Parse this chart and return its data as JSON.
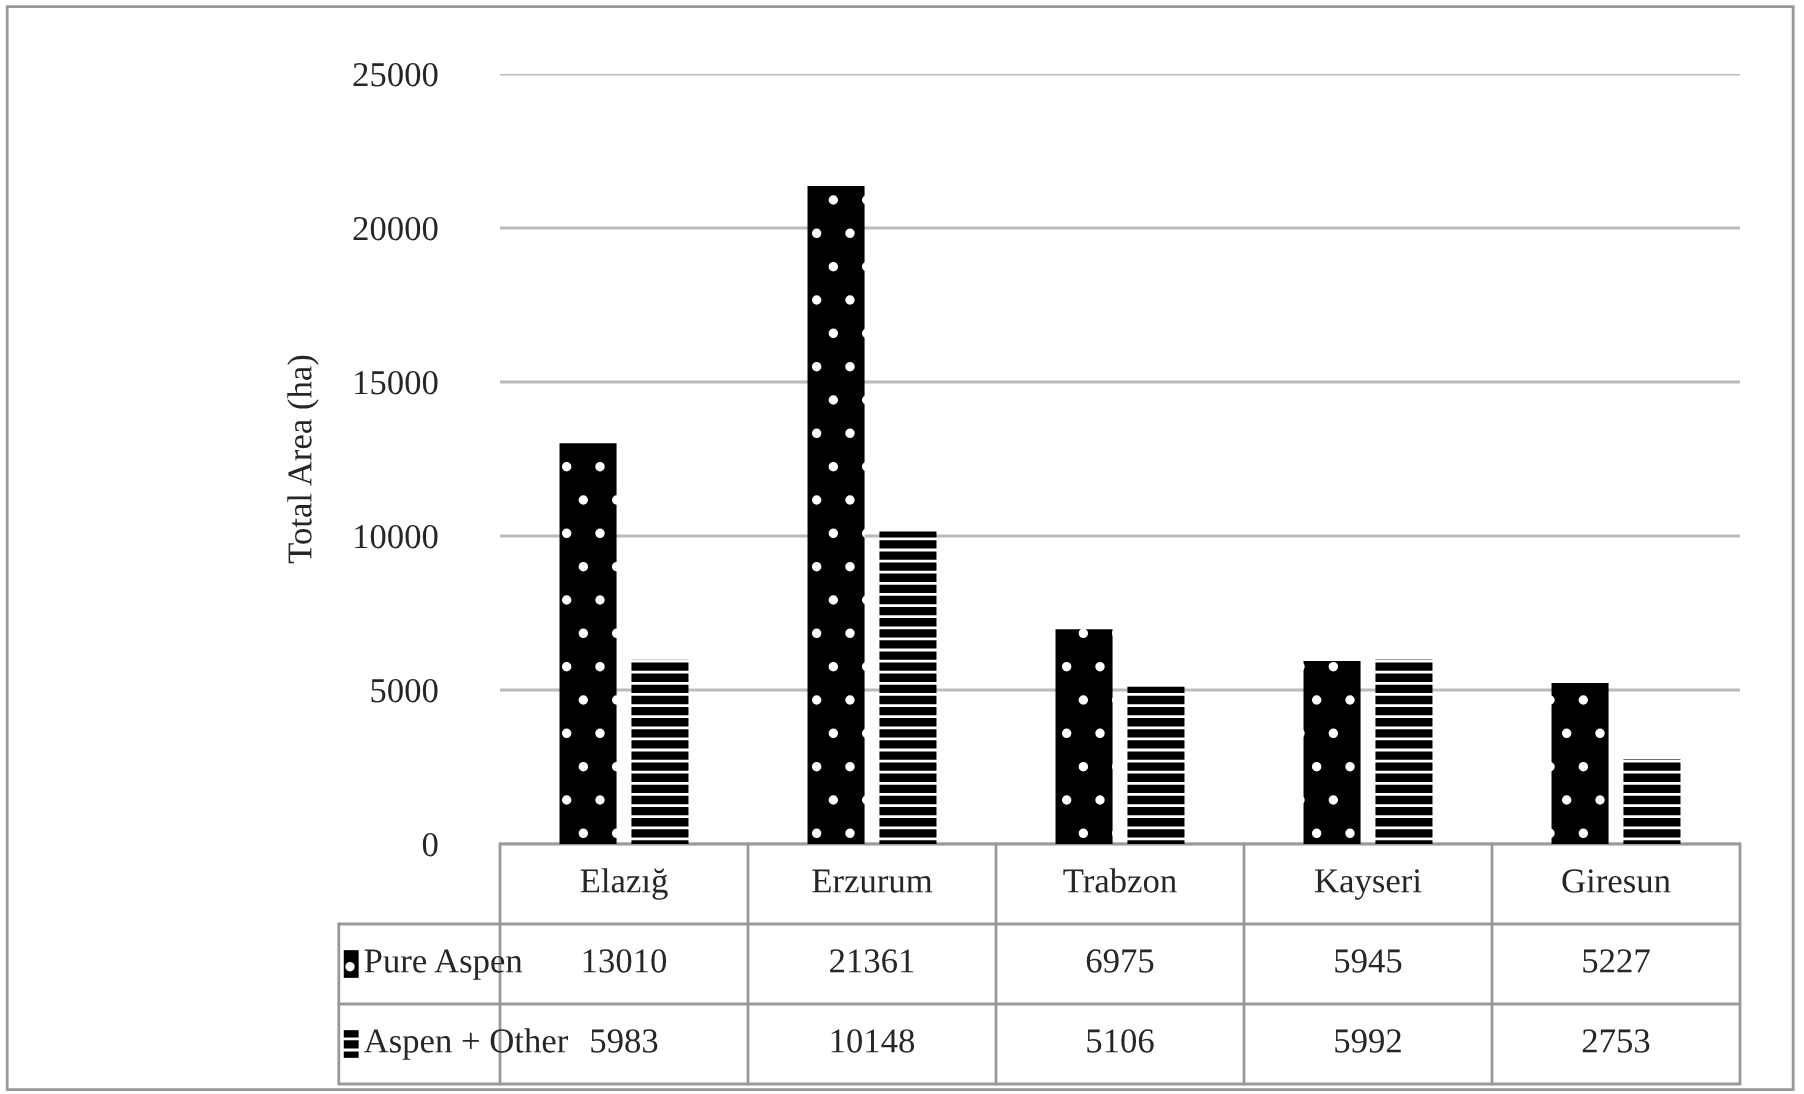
{
  "chart_data": {
    "type": "bar",
    "ylabel": "Total Area (ha)",
    "categories": [
      "Elazığ",
      "Erzurum",
      "Trabzon",
      "Kayseri",
      "Giresun"
    ],
    "series": [
      {
        "name": "Pure Aspen",
        "color": "#000000",
        "values": [
          13010,
          21361,
          6975,
          5945,
          5227
        ]
      },
      {
        "name": "Aspen + Other",
        "color": "#000000",
        "values": [
          5983,
          10148,
          5106,
          5992,
          2753
        ]
      }
    ],
    "ylim": [
      0,
      25000
    ],
    "yticks": [
      0,
      5000,
      10000,
      15000,
      20000,
      25000
    ],
    "grid": "y",
    "data_labels": true,
    "legend": "bottom"
  }
}
